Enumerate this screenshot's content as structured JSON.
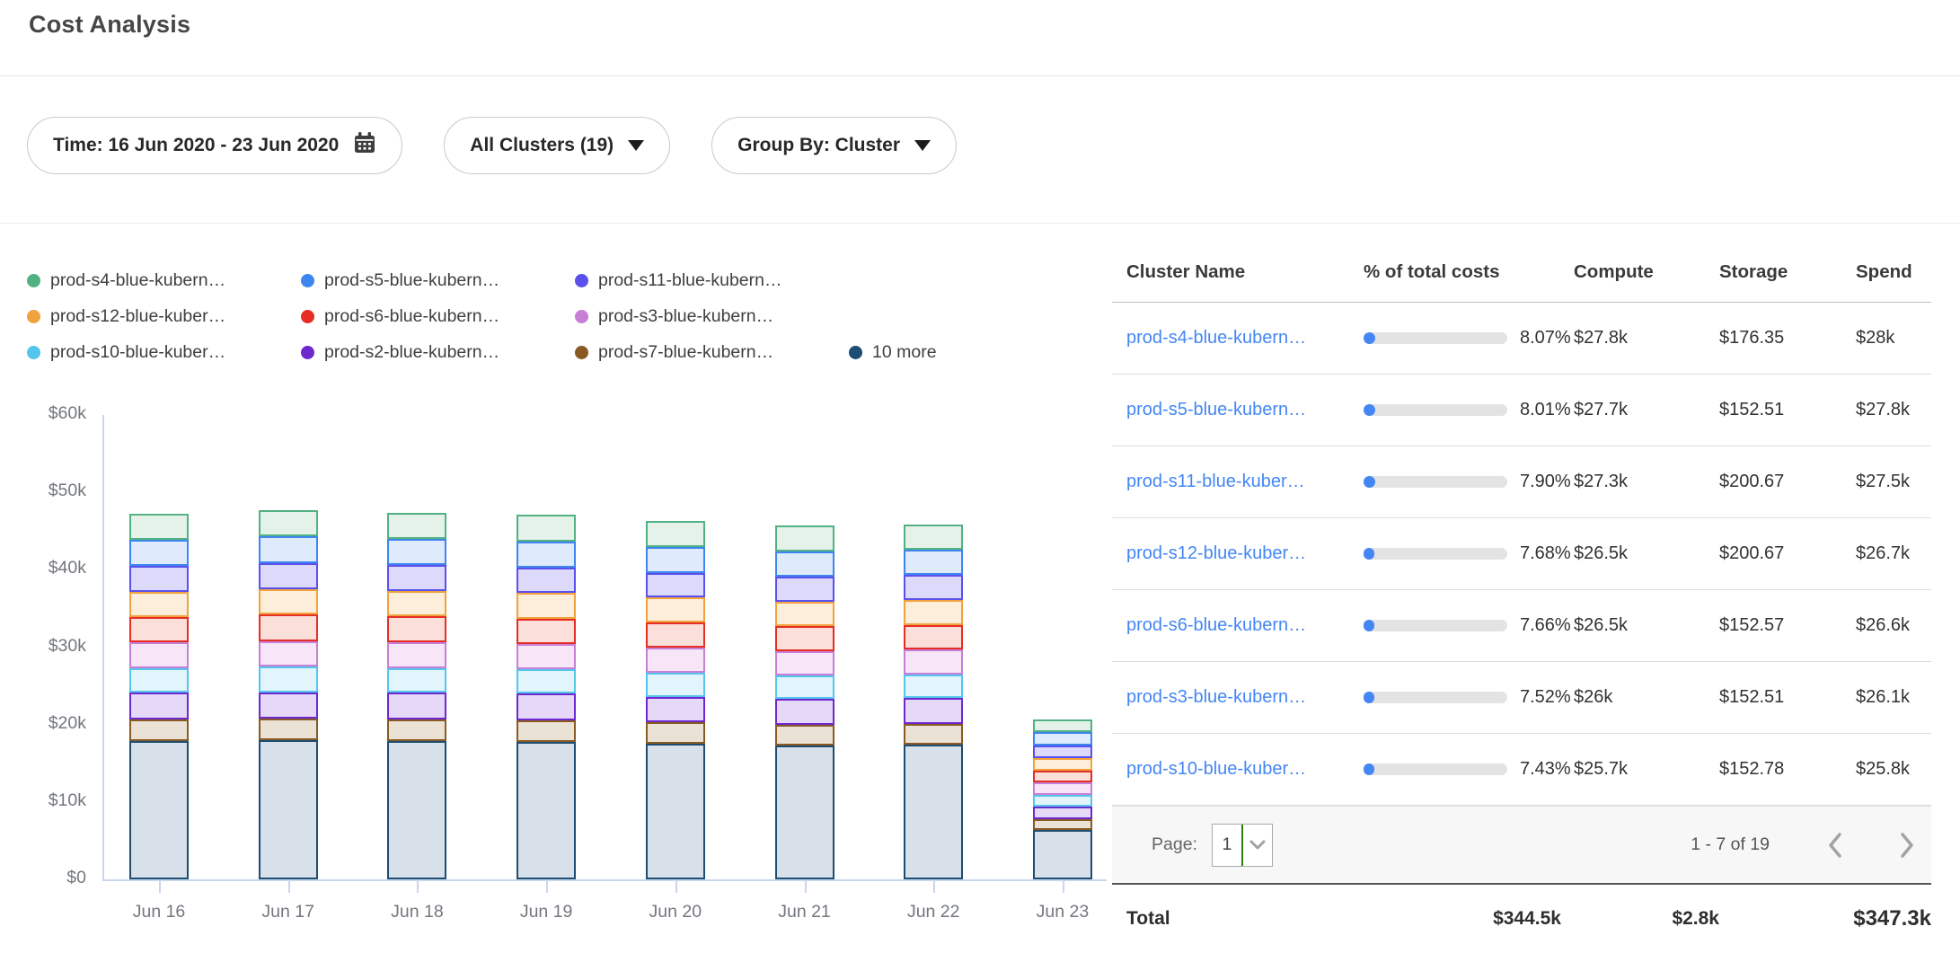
{
  "page": {
    "title": "Cost Analysis"
  },
  "filters": {
    "time_label": "Time: 16 Jun 2020 - 23 Jun 2020",
    "clusters_label": "All Clusters (19)",
    "group_by_label": "Group By: Cluster"
  },
  "colors": {
    "link": "#4486f4",
    "progress_fill": "#4486f4",
    "progress_track": "#e3e3e3",
    "axis": "#c9d6ee",
    "pager_divider_green": "#2e7d10"
  },
  "legend_rows": [
    [
      {
        "label": "prod-s4-blue-kubern…",
        "color": "#52b183"
      },
      {
        "label": "prod-s5-blue-kubern…",
        "color": "#3d86f0"
      },
      {
        "label": "prod-s11-blue-kubern…",
        "color": "#5a50ee"
      }
    ],
    [
      {
        "label": "prod-s12-blue-kuber…",
        "color": "#f0a23d"
      },
      {
        "label": "prod-s6-blue-kubern…",
        "color": "#e62e24"
      },
      {
        "label": "prod-s3-blue-kubern…",
        "color": "#c77fd6"
      }
    ],
    [
      {
        "label": "prod-s10-blue-kuber…",
        "color": "#54c5ec"
      },
      {
        "label": "prod-s2-blue-kubern…",
        "color": "#6d28cf"
      },
      {
        "label": "prod-s7-blue-kubern…",
        "color": "#8a5a24"
      },
      {
        "label": "10 more",
        "color": "#1d4d72"
      }
    ]
  ],
  "chart_data": {
    "type": "bar",
    "stacked": true,
    "title": "",
    "xlabel": "",
    "ylabel": "",
    "units": "USD thousands per day",
    "ylim_k": [
      0,
      60
    ],
    "y_ticks": [
      {
        "label": "$60k",
        "value": 60
      },
      {
        "label": "$50k",
        "value": 50
      },
      {
        "label": "$40k",
        "value": 40
      },
      {
        "label": "$30k",
        "value": 30
      },
      {
        "label": "$20k",
        "value": 20
      },
      {
        "label": "$10k",
        "value": 10
      },
      {
        "label": "$0",
        "value": 0
      }
    ],
    "categories": [
      "Jun 16",
      "Jun 17",
      "Jun 18",
      "Jun 19",
      "Jun 20",
      "Jun 21",
      "Jun 22",
      "Jun 23"
    ],
    "series": [
      {
        "name": "10 more",
        "border": "#1d4d72",
        "fill": "#d8e1ea",
        "values": [
          17.9,
          18.0,
          17.9,
          17.8,
          17.5,
          17.3,
          17.4,
          6.4
        ]
      },
      {
        "name": "prod-s7-blue-kubern…",
        "border": "#8a5a24",
        "fill": "#eae2d5",
        "values": [
          2.8,
          2.8,
          2.8,
          2.8,
          2.8,
          2.7,
          2.7,
          1.4
        ]
      },
      {
        "name": "prod-s2-blue-kubern…",
        "border": "#6d28cf",
        "fill": "#e6d9f8",
        "values": [
          3.4,
          3.4,
          3.4,
          3.4,
          3.3,
          3.3,
          3.3,
          1.6
        ]
      },
      {
        "name": "prod-s10-blue-kuber…",
        "border": "#54c5ec",
        "fill": "#e2f5fc",
        "values": [
          3.2,
          3.3,
          3.2,
          3.2,
          3.1,
          3.1,
          3.1,
          1.5
        ]
      },
      {
        "name": "prod-s3-blue-kubern…",
        "border": "#c77fd6",
        "fill": "#f6e6f8",
        "values": [
          3.3,
          3.3,
          3.3,
          3.2,
          3.2,
          3.1,
          3.2,
          1.6
        ]
      },
      {
        "name": "prod-s6-blue-kubern…",
        "border": "#e62e24",
        "fill": "#fadfdb",
        "values": [
          3.3,
          3.4,
          3.4,
          3.3,
          3.3,
          3.2,
          3.2,
          1.6
        ]
      },
      {
        "name": "prod-s12-blue-kuber…",
        "border": "#f0a23d",
        "fill": "#fceedb",
        "values": [
          3.3,
          3.3,
          3.3,
          3.3,
          3.2,
          3.2,
          3.2,
          1.6
        ]
      },
      {
        "name": "prod-s11-blue-kubern…",
        "border": "#5a50ee",
        "fill": "#ddd9fb",
        "values": [
          3.3,
          3.4,
          3.3,
          3.3,
          3.2,
          3.2,
          3.2,
          1.6
        ]
      },
      {
        "name": "prod-s5-blue-kubern…",
        "border": "#3d86f0",
        "fill": "#dfeafc",
        "values": [
          3.4,
          3.4,
          3.4,
          3.4,
          3.3,
          3.3,
          3.3,
          1.7
        ]
      },
      {
        "name": "prod-s4-blue-kubern…",
        "border": "#52b183",
        "fill": "#e5f2ea",
        "values": [
          3.4,
          3.4,
          3.4,
          3.4,
          3.4,
          3.3,
          3.3,
          1.7
        ]
      }
    ]
  },
  "table": {
    "columns": [
      "Cluster Name",
      "% of total costs",
      "Compute",
      "Storage",
      "Spend"
    ],
    "rows": [
      {
        "name": "prod-s4-blue-kubern…",
        "pct": "8.07%",
        "pct_value": 8.07,
        "compute": "$27.8k",
        "storage": "$176.35",
        "spend": "$28k"
      },
      {
        "name": "prod-s5-blue-kubern…",
        "pct": "8.01%",
        "pct_value": 8.01,
        "compute": "$27.7k",
        "storage": "$152.51",
        "spend": "$27.8k"
      },
      {
        "name": "prod-s11-blue-kuber…",
        "pct": "7.90%",
        "pct_value": 7.9,
        "compute": "$27.3k",
        "storage": "$200.67",
        "spend": "$27.5k"
      },
      {
        "name": "prod-s12-blue-kuber…",
        "pct": "7.68%",
        "pct_value": 7.68,
        "compute": "$26.5k",
        "storage": "$200.67",
        "spend": "$26.7k"
      },
      {
        "name": "prod-s6-blue-kubern…",
        "pct": "7.66%",
        "pct_value": 7.66,
        "compute": "$26.5k",
        "storage": "$152.57",
        "spend": "$26.6k"
      },
      {
        "name": "prod-s3-blue-kubern…",
        "pct": "7.52%",
        "pct_value": 7.52,
        "compute": "$26k",
        "storage": "$152.51",
        "spend": "$26.1k"
      },
      {
        "name": "prod-s10-blue-kuber…",
        "pct": "7.43%",
        "pct_value": 7.43,
        "compute": "$25.7k",
        "storage": "$152.78",
        "spend": "$25.8k"
      }
    ],
    "pagination": {
      "label": "Page:",
      "page": "1",
      "range": "1 - 7 of 19"
    },
    "total": {
      "label": "Total",
      "compute": "$344.5k",
      "storage": "$2.8k",
      "spend": "$347.3k"
    }
  }
}
